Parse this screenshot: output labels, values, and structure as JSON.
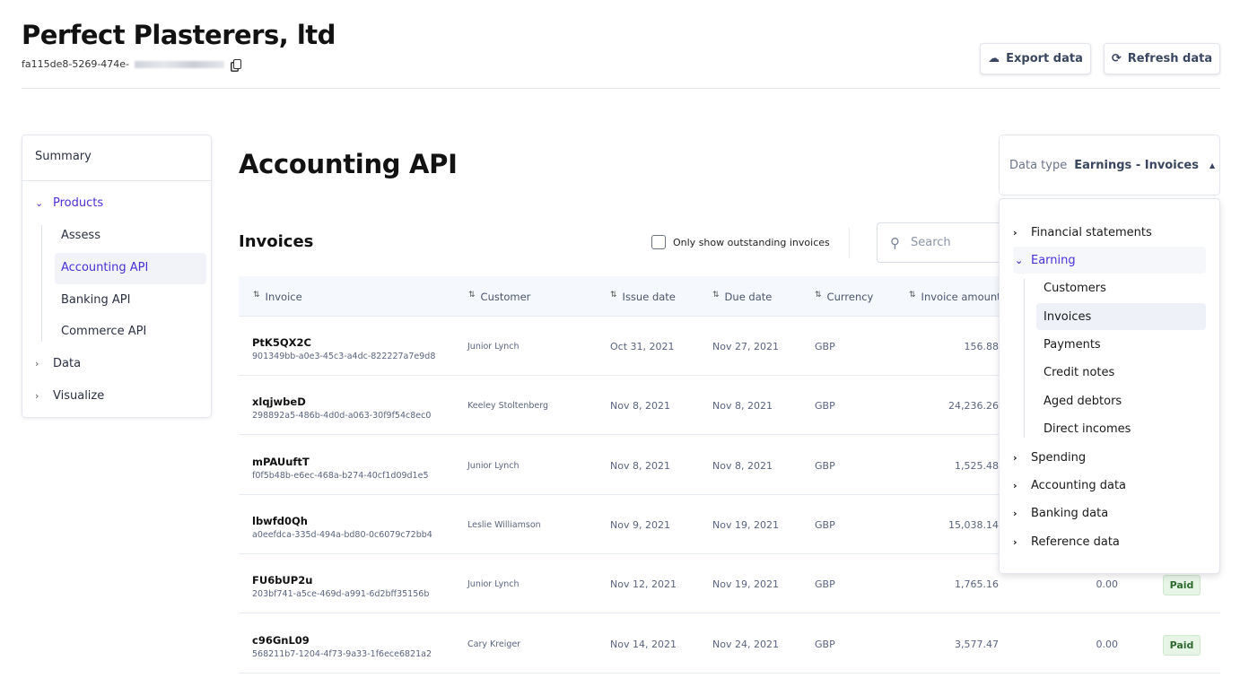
{
  "company": {
    "name": "Perfect Plasterers, ltd",
    "id_visible": "fa115de8-5269-474e-"
  },
  "header": {
    "export_label": "Export data",
    "refresh_label": "Refresh data"
  },
  "sidebar": {
    "summary": "Summary",
    "products": "Products",
    "sub": [
      "Assess",
      "Accounting API",
      "Banking API",
      "Commerce API"
    ],
    "active": "Accounting API",
    "data": "Data",
    "visualize": "Visualize"
  },
  "main": {
    "title": "Accounting API",
    "data_type_label": "Data type",
    "data_type_value": "Earnings - Invoices"
  },
  "dropdown": {
    "items": [
      "Financial statements",
      "Earning",
      "Spending",
      "Accounting data",
      "Banking data",
      "Reference data"
    ],
    "earning_children": [
      "Customers",
      "Invoices",
      "Payments",
      "Credit notes",
      "Aged debtors",
      "Direct incomes"
    ],
    "selected": "Invoices"
  },
  "invoices": {
    "title": "Invoices",
    "checkbox_label": "Only show outstanding invoices",
    "checkbox_checked": false,
    "search_placeholder": "Search",
    "columns": [
      "Invoice",
      "Customer",
      "Issue date",
      "Due date",
      "Currency",
      "Invoice amount"
    ],
    "rows": [
      {
        "invoice": "PtK5QX2C",
        "id": "901349bb-a0e3-45c3-a4dc-822227a7e9d8",
        "customer": "Junior Lynch",
        "issue": "Oct 31, 2021",
        "due": "Nov 27, 2021",
        "currency": "GBP",
        "amount": "156.88"
      },
      {
        "invoice": "xlqjwbeD",
        "id": "298892a5-486b-4d0d-a063-30f9f54c8ec0",
        "customer": "Keeley Stoltenberg",
        "issue": "Nov 8, 2021",
        "due": "Nov 8, 2021",
        "currency": "GBP",
        "amount": "24,236.26"
      },
      {
        "invoice": "mPAUuftT",
        "id": "f0f5b48b-e6ec-468a-b274-40cf1d09d1e5",
        "customer": "Junior Lynch",
        "issue": "Nov 8, 2021",
        "due": "Nov 8, 2021",
        "currency": "GBP",
        "amount": "1,525.48"
      },
      {
        "invoice": "lbwfd0Qh",
        "id": "a0eefdca-335d-494a-bd80-0c6079c72bb4",
        "customer": "Leslie Williamson",
        "issue": "Nov 9, 2021",
        "due": "Nov 19, 2021",
        "currency": "GBP",
        "amount": "15,038.14"
      },
      {
        "invoice": "FU6bUP2u",
        "id": "203bf741-a5ce-469d-a991-6d2bff35156b",
        "customer": "Junior Lynch",
        "issue": "Nov 12, 2021",
        "due": "Nov 19, 2021",
        "currency": "GBP",
        "amount": "1,765.16",
        "amount_due": "0.00",
        "status": "Paid"
      },
      {
        "invoice": "c96GnL09",
        "id": "568211b7-1204-4f73-9a33-1f6ece6821a2",
        "customer": "Cary Kreiger",
        "issue": "Nov 14, 2021",
        "due": "Nov 24, 2021",
        "currency": "GBP",
        "amount": "3,577.47",
        "amount_due": "0.00",
        "status": "Paid"
      }
    ]
  },
  "colors": {
    "accent": "#4b2fd6",
    "paid_bg": "#e7f5e7",
    "paid_text": "#2f6a2f"
  }
}
